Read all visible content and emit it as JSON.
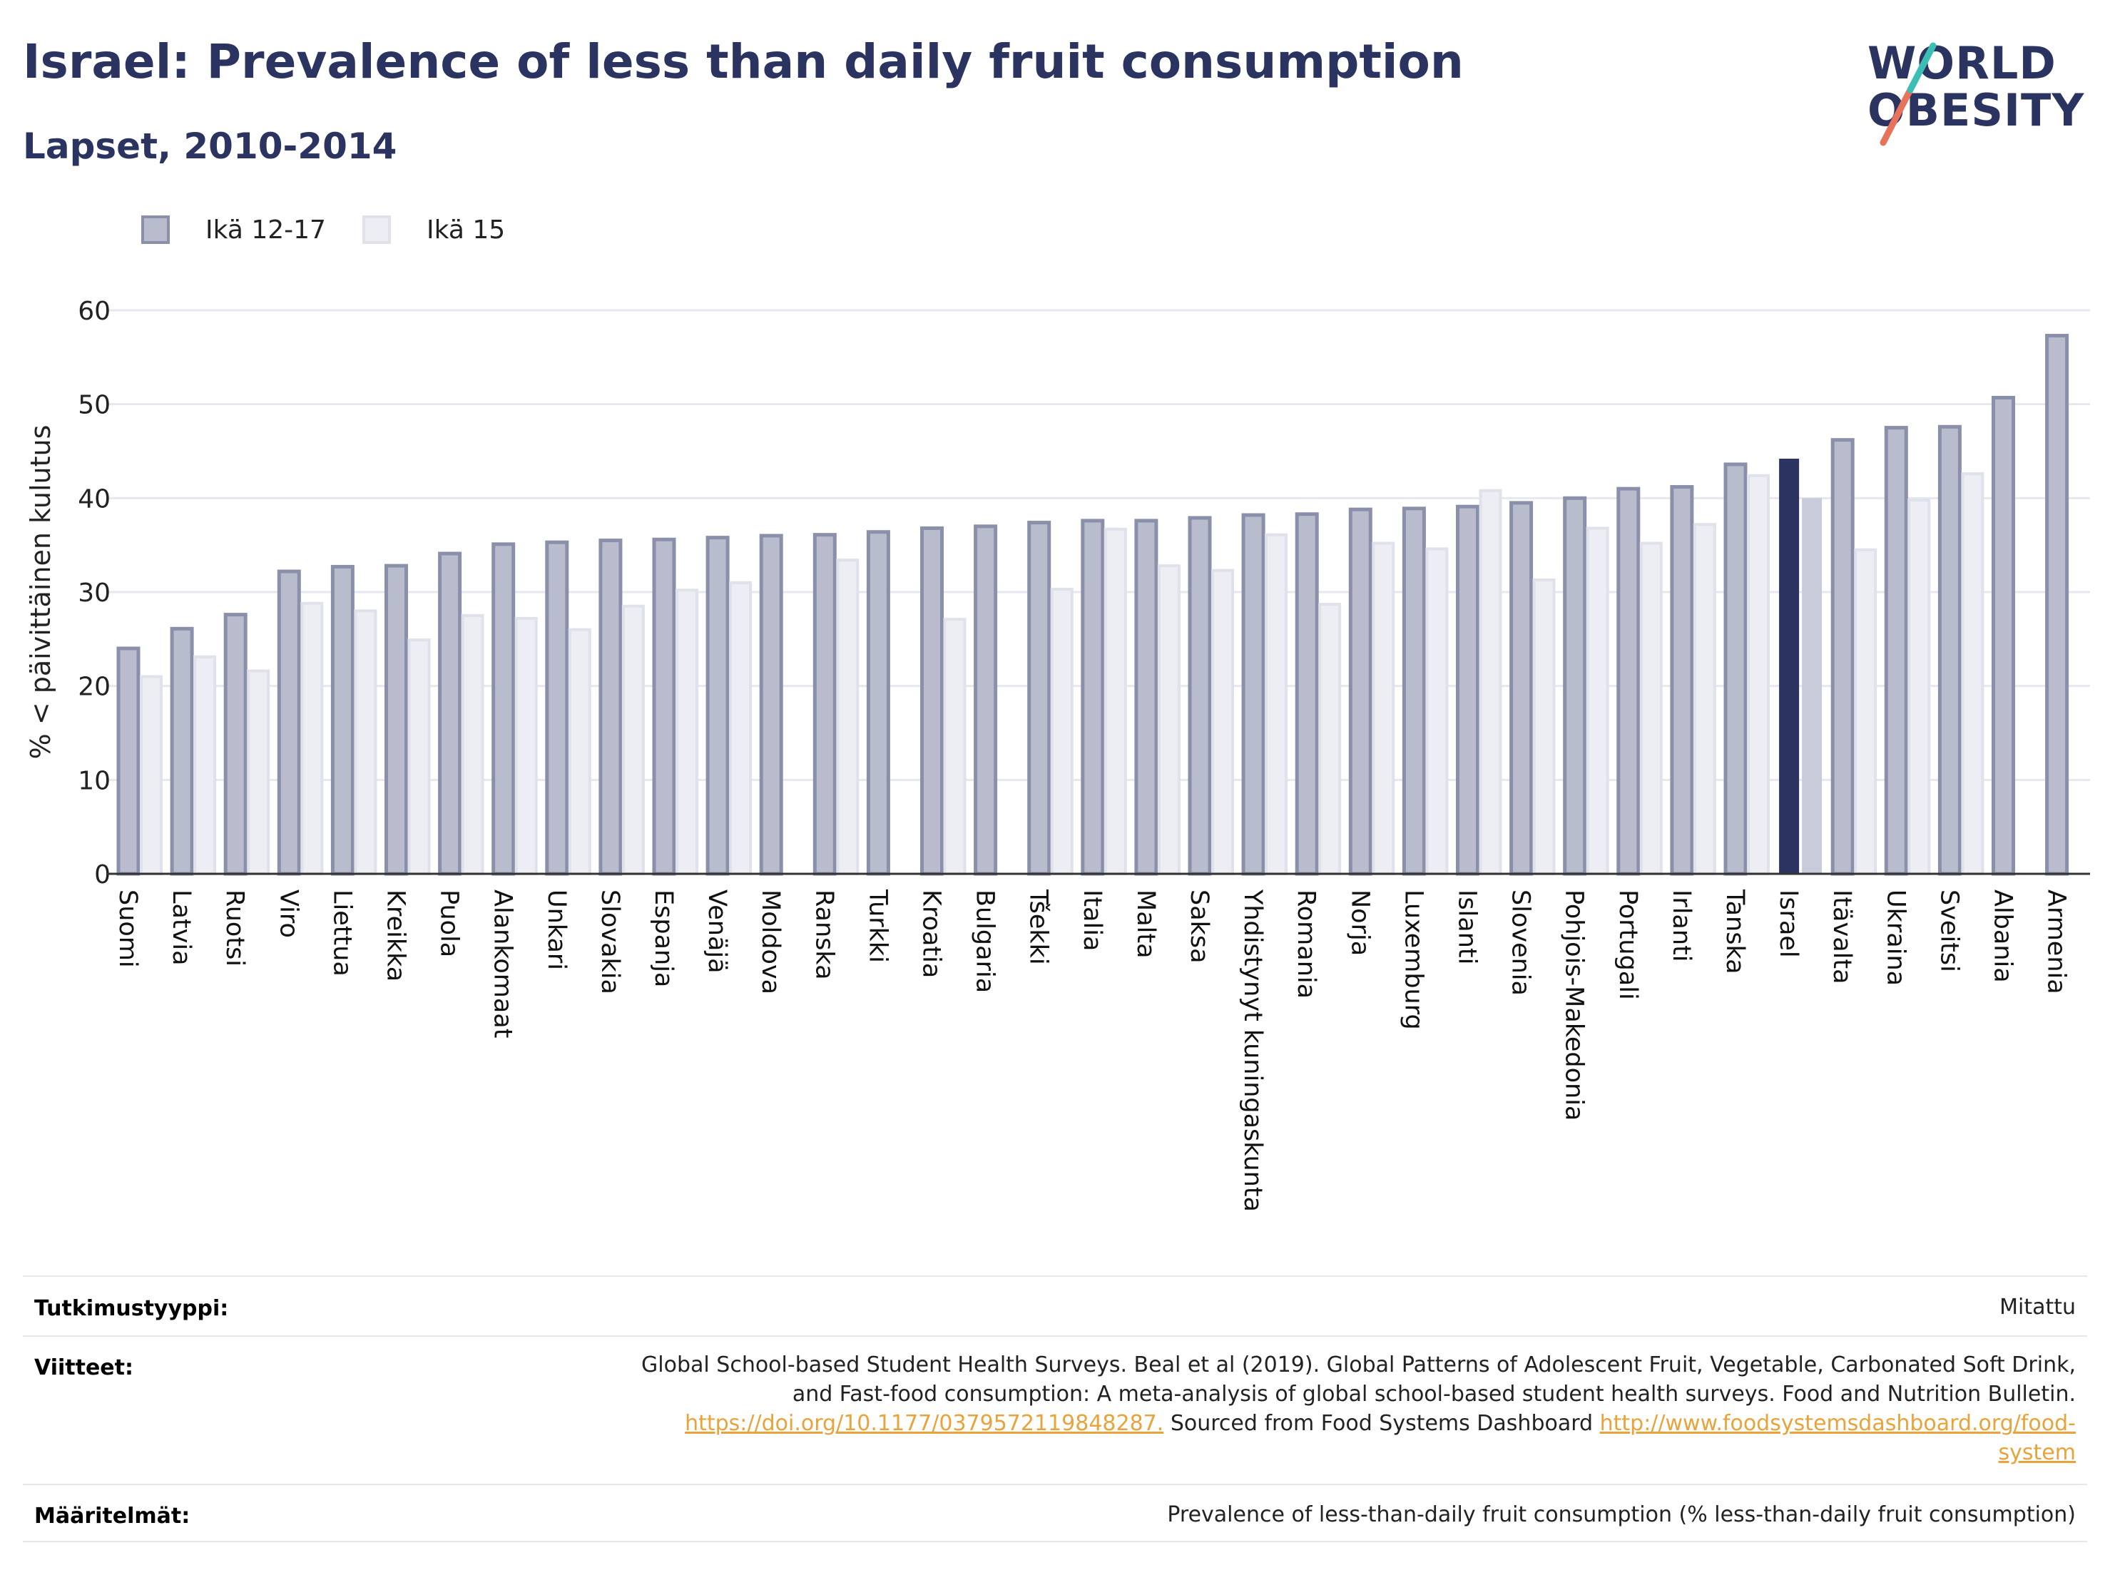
{
  "header": {
    "title": "Israel: Prevalence of less than daily fruit consumption",
    "subtitle": "Lapset, 2010-2014"
  },
  "logo": {
    "line1": "WORLD",
    "line2": "OBESITY"
  },
  "colors": {
    "title": "#2b3460",
    "series1_fill": "#b9bccd",
    "series1_stroke": "#8a90aa",
    "series2_fill": "#eceef3",
    "series2_stroke": "#dfe2ea",
    "highlight1": "#2b3460",
    "highlight2": "#c8cbda",
    "grid": "#e6e8ef",
    "axis": "#333333"
  },
  "chart_data": {
    "type": "bar",
    "ylabel": "% < päivittäinen kulutus",
    "xlabel": "",
    "ylim": [
      0,
      60
    ],
    "yticks": [
      0,
      10,
      20,
      30,
      40,
      50,
      60
    ],
    "grid": true,
    "legend_position": "top-left",
    "highlight": "Israel",
    "categories": [
      "Suomi",
      "Latvia",
      "Ruotsi",
      "Viro",
      "Liettua",
      "Kreikka",
      "Puola",
      "Alankomaat",
      "Unkari",
      "Slovakia",
      "Espanja",
      "Venäjä",
      "Moldova",
      "Ranska",
      "Turkki",
      "Kroatia",
      "Bulgaria",
      "Tšekki",
      "Italia",
      "Malta",
      "Saksa",
      "Yhdistynyt kuningaskunta",
      "Romania",
      "Norja",
      "Luxemburg",
      "Islanti",
      "Slovenia",
      "Pohjois-Makedonia",
      "Portugali",
      "Irlanti",
      "Tanska",
      "Israel",
      "Itävalta",
      "Ukraina",
      "Sveitsi",
      "Albania",
      "Armenia"
    ],
    "series": [
      {
        "name": "Ikä 12-17",
        "values": [
          24.0,
          26.1,
          27.6,
          32.2,
          32.7,
          32.8,
          34.1,
          35.1,
          35.3,
          35.5,
          35.6,
          35.8,
          36.0,
          36.1,
          36.4,
          36.8,
          37.0,
          37.4,
          37.6,
          37.6,
          37.9,
          38.2,
          38.3,
          38.8,
          38.9,
          39.1,
          39.5,
          40.0,
          41.0,
          41.2,
          43.6,
          44.2,
          46.2,
          47.5,
          47.6,
          50.7,
          57.3
        ]
      },
      {
        "name": "Ikä 15",
        "values": [
          21.0,
          23.1,
          21.6,
          28.8,
          28.0,
          24.9,
          27.5,
          27.2,
          26.0,
          28.5,
          30.2,
          31.0,
          null,
          33.4,
          null,
          27.1,
          null,
          30.3,
          36.7,
          32.8,
          32.3,
          36.1,
          28.7,
          35.2,
          34.6,
          40.8,
          31.3,
          36.8,
          35.2,
          37.2,
          42.4,
          40.0,
          34.5,
          39.8,
          42.6,
          null,
          null
        ]
      }
    ]
  },
  "footer": {
    "study_type_label": "Tutkimustyyppi:",
    "study_type_value": "Mitattu",
    "references_label": "Viitteet:",
    "references_line1": "Global School-based Student Health Surveys. Beal et al (2019). Global Patterns of Adolescent Fruit, Vegetable, Carbonated Soft Drink,",
    "references_line2": "and Fast-food consumption: A meta-analysis of global school-based student health surveys. Food and Nutrition Bulletin.",
    "references_link1": "https://doi.org/10.1177/0379572119848287.",
    "references_mid": " Sourced from Food Systems Dashboard ",
    "references_link2a": "http://www.foodsystemsdashboard.org/food-",
    "references_link2b": "system",
    "definitions_label": "Määritelmät:",
    "definitions_value": "Prevalence of less-than-daily fruit consumption (% less-than-daily fruit consumption)"
  }
}
